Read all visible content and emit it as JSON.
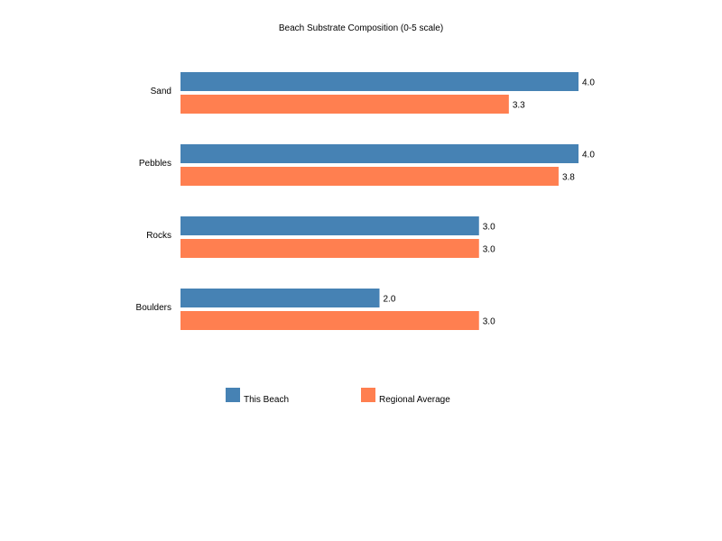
{
  "chart_data": {
    "type": "bar",
    "orientation": "horizontal",
    "title": "Beach Substrate Composition (0-5 scale)",
    "categories": [
      "Sand",
      "Pebbles",
      "Rocks",
      "Boulders"
    ],
    "series": [
      {
        "name": "This Beach",
        "color": "#4682b4",
        "values": [
          4.0,
          4.0,
          3.0,
          2.0
        ]
      },
      {
        "name": "Regional Average",
        "color": "#ff7f50",
        "values": [
          3.3,
          3.8,
          3.0,
          3.0
        ]
      }
    ],
    "xlim": [
      0,
      5
    ],
    "grid": false,
    "legend_position": "bottom"
  }
}
